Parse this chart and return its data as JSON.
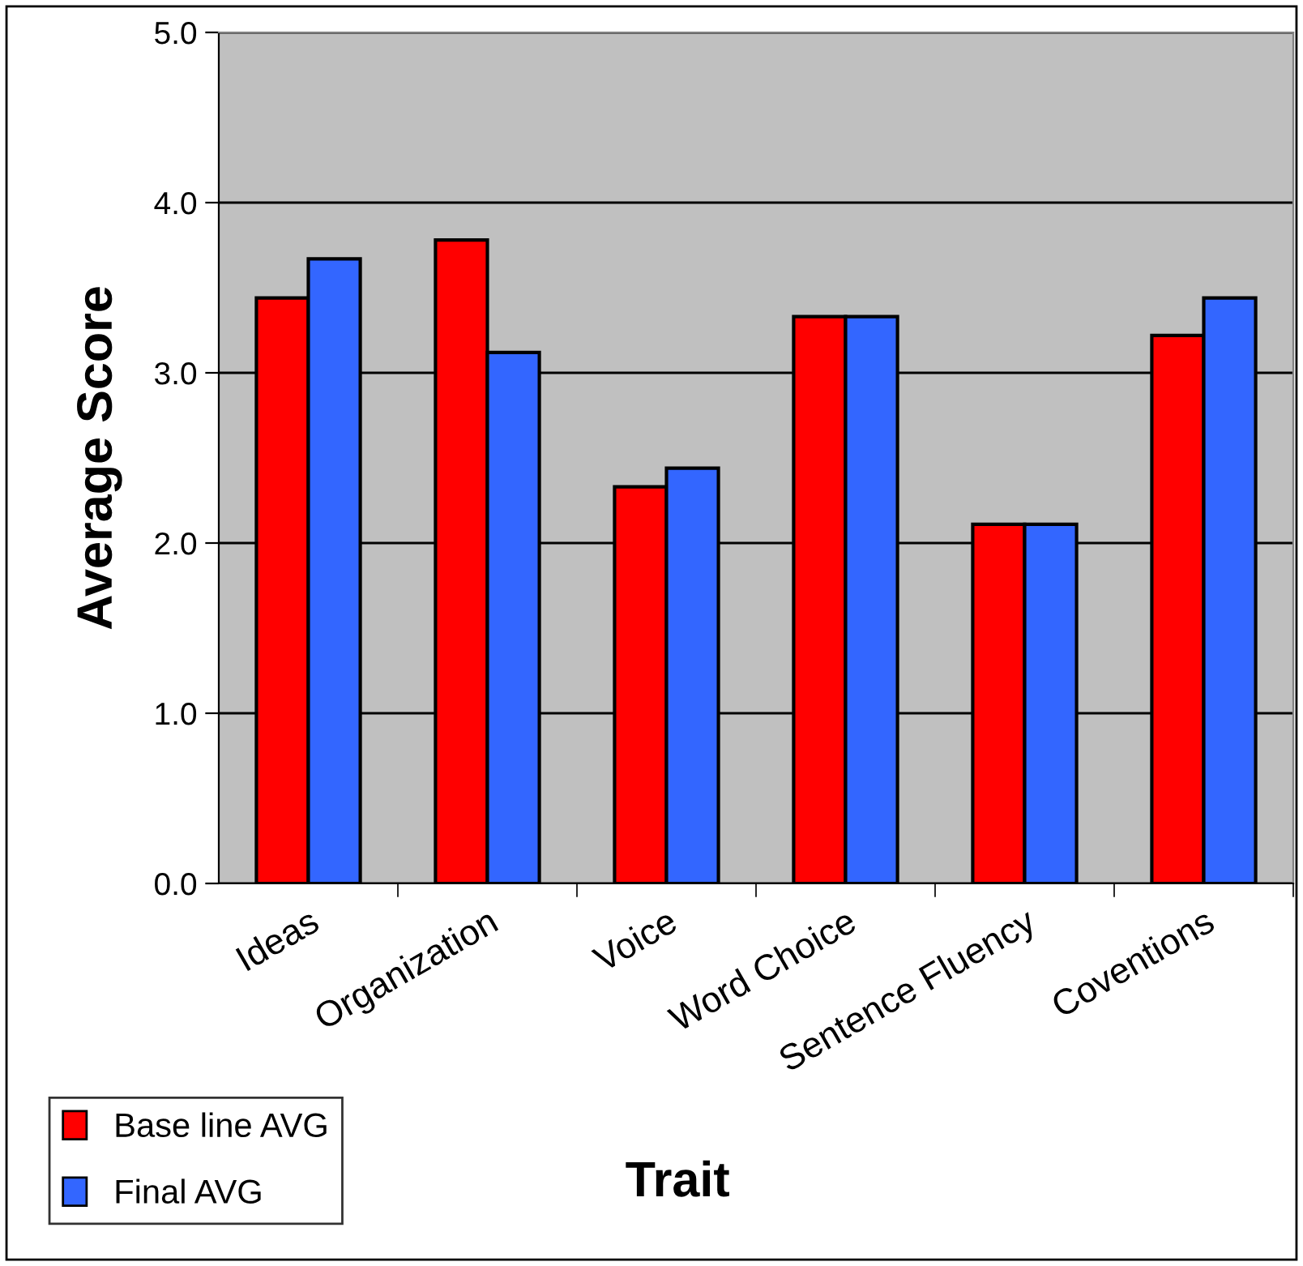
{
  "chart_data": {
    "type": "bar",
    "xlabel": "Trait",
    "ylabel": "Average Score",
    "categories": [
      "Ideas",
      "Organization",
      "Voice",
      "Word Choice",
      "Sentence Fluency",
      "Coventions"
    ],
    "series": [
      {
        "name": "Base line AVG",
        "color": "#ff0000",
        "values": [
          3.44,
          3.78,
          2.33,
          3.33,
          2.11,
          3.22
        ]
      },
      {
        "name": "Final AVG",
        "color": "#3366ff",
        "values": [
          3.67,
          3.12,
          2.44,
          3.33,
          2.11,
          3.44
        ]
      }
    ],
    "ylim": [
      0,
      5
    ],
    "yticks": [
      {
        "value": 0,
        "label": "0.0"
      },
      {
        "value": 1,
        "label": "1.0"
      },
      {
        "value": 2,
        "label": "2.0"
      },
      {
        "value": 3,
        "label": "3.0"
      },
      {
        "value": 4,
        "label": "4.0"
      },
      {
        "value": 5,
        "label": "5.0"
      }
    ],
    "grid": "y",
    "legend": "bottom left"
  }
}
